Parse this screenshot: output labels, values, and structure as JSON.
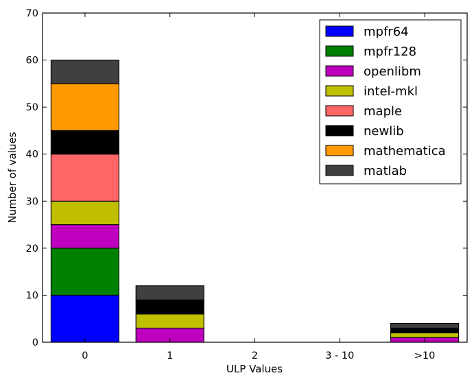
{
  "chart_data": {
    "type": "bar",
    "stacked": true,
    "categories": [
      "0",
      "1",
      "2",
      "3 - 10",
      ">10"
    ],
    "xlabel": "ULP Values",
    "ylabel": "Number of values",
    "ylim": [
      0,
      70
    ],
    "yticks": [
      "0",
      "10",
      "20",
      "30",
      "40",
      "50",
      "60",
      "70"
    ],
    "grid": false,
    "legend_position": "top-right",
    "series": [
      {
        "name": "mpfr64",
        "color": "#0000ff",
        "values": [
          10,
          0,
          0,
          0,
          0
        ]
      },
      {
        "name": "mpfr128",
        "color": "#008000",
        "values": [
          10,
          0,
          0,
          0,
          0
        ]
      },
      {
        "name": "openlibm",
        "color": "#bf00bf",
        "values": [
          5,
          3,
          0,
          0,
          1
        ]
      },
      {
        "name": "intel-mkl",
        "color": "#bfbf00",
        "values": [
          5,
          3,
          0,
          0,
          1
        ]
      },
      {
        "name": "maple",
        "color": "#ff6666",
        "values": [
          10,
          0,
          0,
          0,
          0
        ]
      },
      {
        "name": "newlib",
        "color": "#000000",
        "values": [
          5,
          3,
          0,
          0,
          1
        ]
      },
      {
        "name": "mathematica",
        "color": "#ff9900",
        "values": [
          10,
          0,
          0,
          0,
          0
        ]
      },
      {
        "name": "matlab",
        "color": "#404040",
        "values": [
          5,
          3,
          0,
          0,
          1
        ]
      }
    ]
  }
}
